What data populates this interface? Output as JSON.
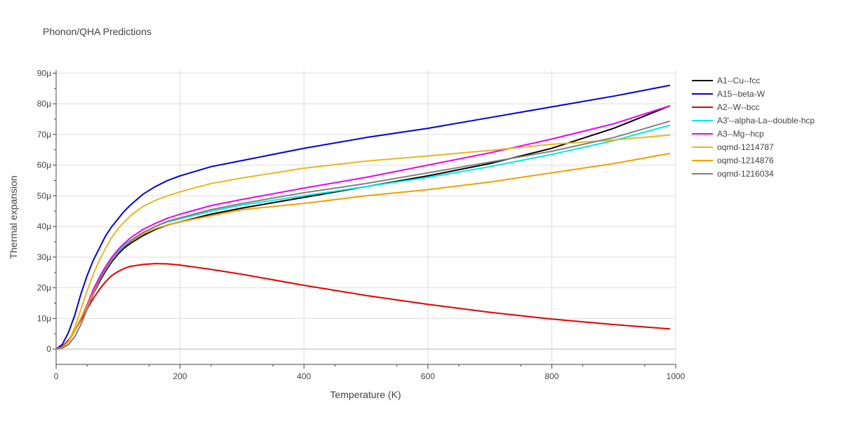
{
  "chart_data": {
    "type": "line",
    "title": "Phonon/QHA Predictions",
    "xlabel": "Temperature (K)",
    "ylabel": "Thermal expansion",
    "xlim": [
      0,
      1000
    ],
    "ylim": [
      -5,
      91
    ],
    "x_ticks": [
      0,
      200,
      400,
      600,
      800,
      1000
    ],
    "y_ticks": [
      0,
      10,
      20,
      30,
      40,
      50,
      60,
      70,
      80,
      90
    ],
    "y_tick_labels": [
      "0",
      "10μ",
      "20μ",
      "30μ",
      "40μ",
      "50μ",
      "60μ",
      "70μ",
      "80μ",
      "90μ"
    ],
    "grid": true,
    "legend_position": "right",
    "y_unit_note": "values in units of 1e-6 (μ)",
    "series": [
      {
        "name": "A1--Cu--fcc",
        "color": "#000000",
        "points": [
          [
            0,
            0
          ],
          [
            10,
            0.5
          ],
          [
            20,
            2.5
          ],
          [
            30,
            6
          ],
          [
            40,
            10
          ],
          [
            50,
            14
          ],
          [
            60,
            18
          ],
          [
            70,
            22
          ],
          [
            80,
            25.5
          ],
          [
            90,
            28.5
          ],
          [
            100,
            31
          ],
          [
            110,
            33
          ],
          [
            120,
            34.5
          ],
          [
            140,
            37
          ],
          [
            160,
            39
          ],
          [
            180,
            40.5
          ],
          [
            200,
            41.5
          ],
          [
            250,
            44
          ],
          [
            300,
            46
          ],
          [
            400,
            49.5
          ],
          [
            500,
            53
          ],
          [
            600,
            56.5
          ],
          [
            700,
            60.5
          ],
          [
            800,
            65.5
          ],
          [
            900,
            72
          ],
          [
            990,
            79.3
          ]
        ]
      },
      {
        "name": "A15--beta-W",
        "color": "#0000dd",
        "points": [
          [
            0,
            0
          ],
          [
            10,
            1.5
          ],
          [
            20,
            5.5
          ],
          [
            30,
            11
          ],
          [
            40,
            18
          ],
          [
            50,
            24
          ],
          [
            60,
            29
          ],
          [
            70,
            33
          ],
          [
            80,
            37
          ],
          [
            90,
            40
          ],
          [
            100,
            42.5
          ],
          [
            110,
            45
          ],
          [
            120,
            47
          ],
          [
            140,
            50.5
          ],
          [
            160,
            53
          ],
          [
            180,
            55
          ],
          [
            200,
            56.5
          ],
          [
            250,
            59.5
          ],
          [
            300,
            61.5
          ],
          [
            400,
            65.5
          ],
          [
            500,
            69
          ],
          [
            600,
            72
          ],
          [
            700,
            75.5
          ],
          [
            800,
            79
          ],
          [
            900,
            82.5
          ],
          [
            990,
            86
          ]
        ]
      },
      {
        "name": "A2--W--bcc",
        "color": "#e30000",
        "points": [
          [
            0,
            0
          ],
          [
            10,
            0.8
          ],
          [
            20,
            3
          ],
          [
            30,
            6
          ],
          [
            40,
            9.5
          ],
          [
            50,
            13
          ],
          [
            60,
            16.5
          ],
          [
            70,
            19.5
          ],
          [
            80,
            22
          ],
          [
            90,
            24
          ],
          [
            100,
            25.3
          ],
          [
            110,
            26.3
          ],
          [
            120,
            27
          ],
          [
            140,
            27.6
          ],
          [
            160,
            27.9
          ],
          [
            180,
            27.8
          ],
          [
            200,
            27.4
          ],
          [
            250,
            26
          ],
          [
            300,
            24.4
          ],
          [
            400,
            20.8
          ],
          [
            500,
            17.5
          ],
          [
            600,
            14.6
          ],
          [
            700,
            12
          ],
          [
            800,
            9.8
          ],
          [
            900,
            8
          ],
          [
            990,
            6.6
          ]
        ]
      },
      {
        "name": "A3'--alpha-La--double-hcp",
        "color": "#00e8e8",
        "points": [
          [
            0,
            0
          ],
          [
            10,
            0.5
          ],
          [
            20,
            2.5
          ],
          [
            30,
            6
          ],
          [
            40,
            10
          ],
          [
            50,
            14.5
          ],
          [
            60,
            19
          ],
          [
            70,
            23
          ],
          [
            80,
            26.5
          ],
          [
            90,
            29.5
          ],
          [
            100,
            32
          ],
          [
            110,
            34
          ],
          [
            120,
            35.5
          ],
          [
            140,
            38
          ],
          [
            160,
            40
          ],
          [
            180,
            41.5
          ],
          [
            200,
            42.5
          ],
          [
            250,
            45
          ],
          [
            300,
            47
          ],
          [
            400,
            50
          ],
          [
            500,
            53
          ],
          [
            600,
            56
          ],
          [
            700,
            59.5
          ],
          [
            800,
            63.5
          ],
          [
            900,
            68
          ],
          [
            990,
            73
          ]
        ]
      },
      {
        "name": "A3--Mg--hcp",
        "color": "#ee00ee",
        "points": [
          [
            0,
            0
          ],
          [
            10,
            0.5
          ],
          [
            20,
            2.5
          ],
          [
            30,
            6
          ],
          [
            40,
            10
          ],
          [
            50,
            14.5
          ],
          [
            60,
            19.5
          ],
          [
            70,
            23.5
          ],
          [
            80,
            27
          ],
          [
            90,
            30
          ],
          [
            100,
            32.5
          ],
          [
            110,
            34.5
          ],
          [
            120,
            36.3
          ],
          [
            140,
            39
          ],
          [
            160,
            41
          ],
          [
            180,
            42.7
          ],
          [
            200,
            44
          ],
          [
            250,
            46.8
          ],
          [
            300,
            48.8
          ],
          [
            400,
            52.5
          ],
          [
            500,
            56
          ],
          [
            600,
            60
          ],
          [
            700,
            64
          ],
          [
            800,
            68.5
          ],
          [
            900,
            73.5
          ],
          [
            990,
            79.3
          ]
        ]
      },
      {
        "name": "oqmd-1214787",
        "color": "#e8b820",
        "points": [
          [
            0,
            0
          ],
          [
            10,
            0.5
          ],
          [
            20,
            2.5
          ],
          [
            30,
            7
          ],
          [
            40,
            13
          ],
          [
            50,
            19
          ],
          [
            60,
            24.5
          ],
          [
            70,
            29
          ],
          [
            80,
            33
          ],
          [
            90,
            36.5
          ],
          [
            100,
            39.3
          ],
          [
            110,
            41.5
          ],
          [
            120,
            43.5
          ],
          [
            140,
            46.5
          ],
          [
            160,
            48.5
          ],
          [
            180,
            50
          ],
          [
            200,
            51.3
          ],
          [
            250,
            54
          ],
          [
            300,
            55.8
          ],
          [
            400,
            59
          ],
          [
            500,
            61.3
          ],
          [
            600,
            63
          ],
          [
            700,
            64.8
          ],
          [
            800,
            66.8
          ],
          [
            900,
            68.2
          ],
          [
            990,
            69.8
          ]
        ]
      },
      {
        "name": "oqmd-1214876",
        "color": "#f5a000",
        "points": [
          [
            0,
            0
          ],
          [
            10,
            0.5
          ],
          [
            20,
            2.5
          ],
          [
            30,
            6
          ],
          [
            40,
            10
          ],
          [
            50,
            14
          ],
          [
            60,
            18.5
          ],
          [
            70,
            22.5
          ],
          [
            80,
            26
          ],
          [
            90,
            29
          ],
          [
            100,
            31.5
          ],
          [
            110,
            33.5
          ],
          [
            120,
            35
          ],
          [
            140,
            37.5
          ],
          [
            160,
            39.3
          ],
          [
            180,
            40.5
          ],
          [
            200,
            41.5
          ],
          [
            250,
            43.5
          ],
          [
            300,
            45.5
          ],
          [
            400,
            47.5
          ],
          [
            500,
            50
          ],
          [
            600,
            52
          ],
          [
            700,
            54.5
          ],
          [
            800,
            57.5
          ],
          [
            900,
            60.5
          ],
          [
            990,
            63.8
          ]
        ]
      },
      {
        "name": "oqmd-1216034",
        "color": "#808080",
        "points": [
          [
            0,
            0
          ],
          [
            10,
            0.3
          ],
          [
            20,
            1.5
          ],
          [
            30,
            4
          ],
          [
            40,
            8
          ],
          [
            50,
            13
          ],
          [
            60,
            18
          ],
          [
            70,
            22.5
          ],
          [
            80,
            26
          ],
          [
            90,
            29
          ],
          [
            100,
            31.5
          ],
          [
            110,
            33.5
          ],
          [
            120,
            35.3
          ],
          [
            140,
            38
          ],
          [
            160,
            40
          ],
          [
            180,
            41.7
          ],
          [
            200,
            42.8
          ],
          [
            250,
            45.5
          ],
          [
            300,
            47.5
          ],
          [
            400,
            51
          ],
          [
            500,
            54
          ],
          [
            600,
            57.5
          ],
          [
            700,
            61
          ],
          [
            800,
            64.5
          ],
          [
            900,
            69
          ],
          [
            990,
            74.3
          ]
        ]
      }
    ]
  }
}
